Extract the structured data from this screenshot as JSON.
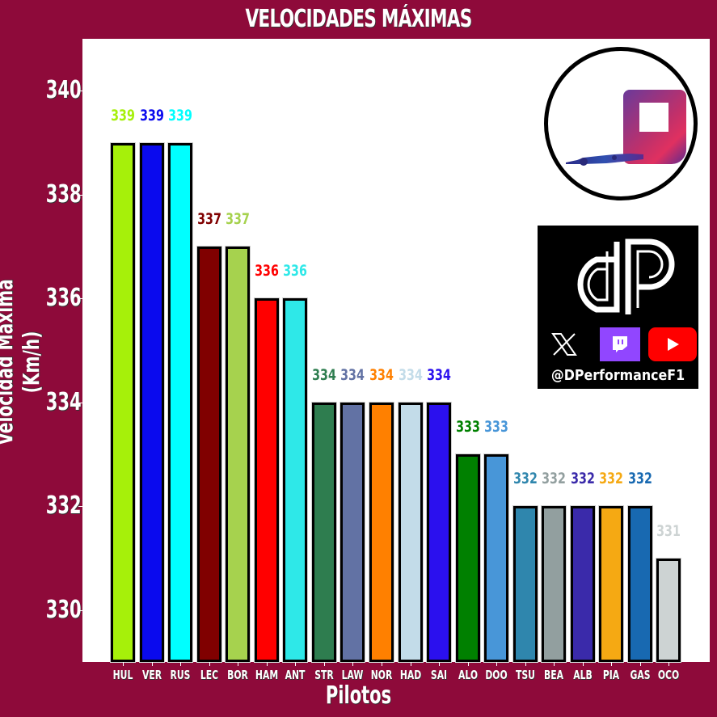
{
  "chart_data": {
    "type": "bar",
    "title": "VELOCIDADES MÁXIMAS",
    "xlabel": "Pilotos",
    "ylabel": "Velocidad Máxima (Km/h)",
    "ylim": [
      329,
      341
    ],
    "yticks": [
      330,
      332,
      334,
      336,
      338,
      340
    ],
    "grid": false,
    "legend": null,
    "categories": [
      "HUL",
      "VER",
      "RUS",
      "LEC",
      "BOR",
      "HAM",
      "ANT",
      "STR",
      "LAW",
      "NOR",
      "HAD",
      "SAI",
      "ALO",
      "DOO",
      "TSU",
      "BEA",
      "ALB",
      "PIA",
      "GAS",
      "OCO"
    ],
    "values": [
      339,
      339,
      339,
      337,
      337,
      336,
      336,
      334,
      334,
      334,
      334,
      334,
      333,
      333,
      332,
      332,
      332,
      332,
      332,
      331
    ],
    "colors": [
      "#a6f00a",
      "#0a0aee",
      "#00ffff",
      "#800000",
      "#a6d24e",
      "#ff0000",
      "#2ee8e8",
      "#2e7d4f",
      "#6272a4",
      "#ff8000",
      "#c3dce9",
      "#2b10ee",
      "#008000",
      "#4896d8",
      "#2f86ad",
      "#929f9f",
      "#3a2aaa",
      "#f5a913",
      "#1869b1",
      "#cdd3d3"
    ],
    "data_labels": [
      "339",
      "339",
      "339",
      "337",
      "337",
      "336",
      "336",
      "334",
      "334",
      "334",
      "334",
      "334",
      "333",
      "333",
      "332",
      "332",
      "332",
      "332",
      "332",
      "331"
    ]
  },
  "branding": {
    "handle": "@DPerformanceF1",
    "social_icons": [
      "x-icon",
      "twitch-icon",
      "youtube-icon"
    ]
  },
  "colors": {
    "background": "#8e0a3a",
    "plot_background": "#ffffff",
    "bar_edge": "#000000"
  }
}
